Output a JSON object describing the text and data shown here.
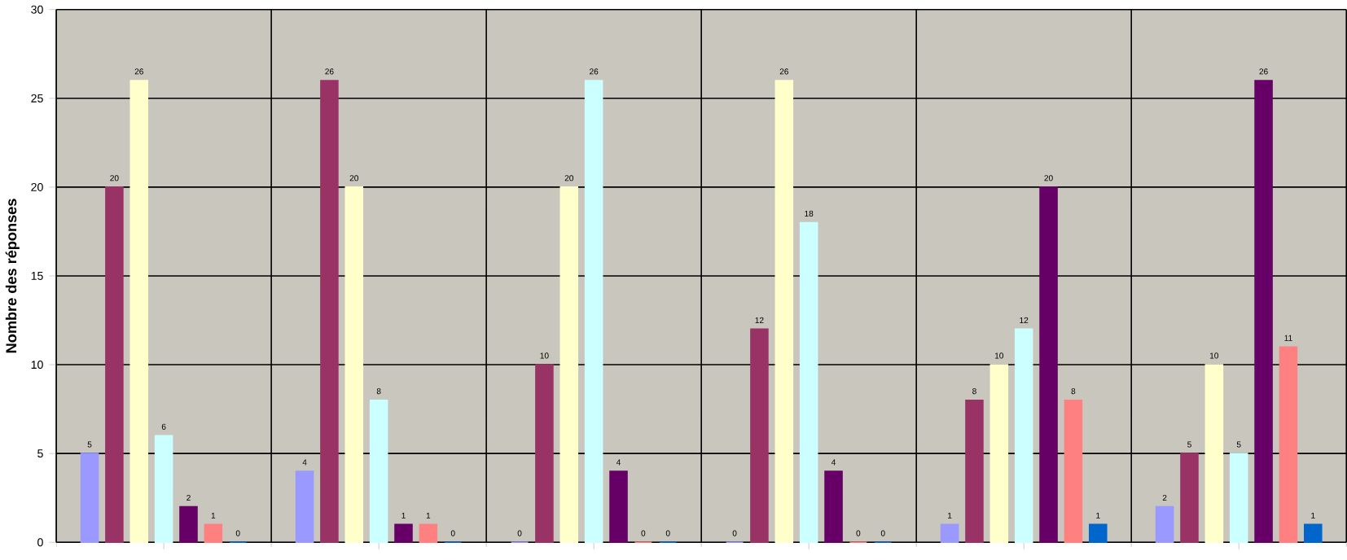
{
  "chart_data": {
    "type": "bar",
    "ylabel": "Nombre des réponses",
    "categories": [
      null,
      null,
      null,
      null,
      null,
      null
    ],
    "series": [
      {
        "color": "#9999ff",
        "values": [
          5,
          4,
          0,
          0,
          1,
          2
        ]
      },
      {
        "color": "#993366",
        "values": [
          20,
          26,
          10,
          12,
          8,
          5
        ]
      },
      {
        "color": "#ffffcc",
        "values": [
          26,
          20,
          20,
          26,
          10,
          10
        ]
      },
      {
        "color": "#ccffff",
        "values": [
          6,
          8,
          26,
          18,
          12,
          5
        ]
      },
      {
        "color": "#660066",
        "values": [
          2,
          1,
          4,
          4,
          20,
          26
        ]
      },
      {
        "color": "#ff8080",
        "values": [
          1,
          1,
          0,
          0,
          8,
          11
        ]
      },
      {
        "color": "#0066cc",
        "values": [
          0,
          0,
          0,
          0,
          1,
          1
        ]
      }
    ],
    "ylim": [
      0,
      30
    ],
    "yticks": [
      0,
      5,
      10,
      15,
      20,
      25,
      30
    ],
    "grid": true,
    "data_labels": true
  }
}
